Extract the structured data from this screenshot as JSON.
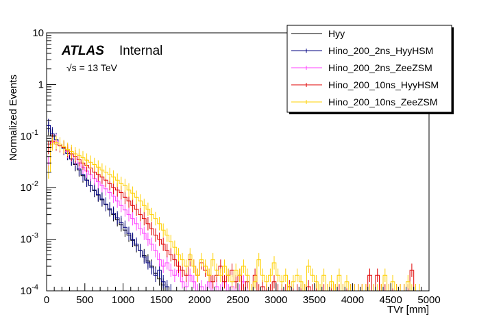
{
  "chart_data": {
    "type": "line",
    "style": "step-histogram",
    "title": "",
    "xlabel": "TVr [mm]",
    "ylabel": "Normalized Events",
    "xlim": [
      0,
      5000
    ],
    "ylim": [
      0.0001,
      10
    ],
    "yscale": "log",
    "bin_width": 50,
    "grid": false,
    "legend_position": "top-right",
    "x_ticks": [
      {
        "value": 0,
        "label": "0"
      },
      {
        "value": 500,
        "label": "500"
      },
      {
        "value": 1000,
        "label": "1000"
      },
      {
        "value": 1500,
        "label": "1500"
      },
      {
        "value": 2000,
        "label": "2000"
      },
      {
        "value": 2500,
        "label": "2500"
      },
      {
        "value": 3000,
        "label": "3000"
      },
      {
        "value": 3500,
        "label": "3500"
      },
      {
        "value": 4000,
        "label": "4000"
      },
      {
        "value": 4500,
        "label": "4500"
      },
      {
        "value": 5000,
        "label": "5000"
      }
    ],
    "y_ticks": [
      {
        "value": 10,
        "base": "10",
        "exp": ""
      },
      {
        "value": 1,
        "base": "1",
        "exp": ""
      },
      {
        "value": 0.1,
        "base": "10",
        "exp": "-1"
      },
      {
        "value": 0.01,
        "base": "10",
        "exp": "-2"
      },
      {
        "value": 0.001,
        "base": "10",
        "exp": "-3"
      },
      {
        "value": 0.0001,
        "base": "10",
        "exp": "-4"
      }
    ],
    "annotations": {
      "experiment": "ATLAS",
      "status": "Internal",
      "energy": "√s = 13 TeV"
    },
    "series": [
      {
        "name": "Hyy",
        "color": "#000000",
        "x": [
          0,
          50,
          100,
          150,
          200,
          250,
          300,
          350,
          400,
          450,
          500,
          550,
          600,
          650,
          700,
          750,
          800,
          850,
          900,
          950,
          1000,
          1050,
          1100,
          1150,
          1200,
          1250,
          1300,
          1350,
          1400,
          1450,
          1500,
          1550
        ],
        "values": [
          0.14,
          0.1,
          0.085,
          0.07,
          0.058,
          0.046,
          0.036,
          0.028,
          0.022,
          0.017,
          0.014,
          0.011,
          0.0088,
          0.0072,
          0.0058,
          0.0047,
          0.0037,
          0.003,
          0.0024,
          0.0019,
          0.0015,
          0.0012,
          0.00095,
          0.00075,
          0.0006,
          0.00048,
          0.00038,
          0.0003,
          0.00022,
          0.00017,
          0.00013,
          0.0001
        ]
      },
      {
        "name": "Hino_200_2ns_HyyHSM",
        "color": "#000080",
        "x": [
          0,
          50,
          100,
          150,
          200,
          250,
          300,
          350,
          400,
          450,
          500,
          550,
          600,
          650,
          700,
          750,
          800,
          850,
          900,
          950,
          1000,
          1050,
          1100,
          1150,
          1200,
          1250,
          1300,
          1350,
          1400,
          1450,
          1500,
          1550,
          1600
        ],
        "values": [
          0.16,
          0.11,
          0.085,
          0.07,
          0.058,
          0.046,
          0.036,
          0.029,
          0.023,
          0.018,
          0.014,
          0.011,
          0.009,
          0.0073,
          0.006,
          0.0048,
          0.0039,
          0.0032,
          0.0026,
          0.0021,
          0.0017,
          0.0013,
          0.001,
          0.0008,
          0.0006,
          0.00045,
          0.00035,
          0.00028,
          0.0002,
          0.00025,
          0.00015,
          0.00012,
          0.0001
        ]
      },
      {
        "name": "Hino_200_2ns_ZeeZSM",
        "color": "#ff40ff",
        "x": [
          0,
          50,
          100,
          150,
          200,
          250,
          300,
          350,
          400,
          450,
          500,
          550,
          600,
          650,
          700,
          750,
          800,
          850,
          900,
          950,
          1000,
          1050,
          1100,
          1150,
          1200,
          1250,
          1300,
          1350,
          1400,
          1450,
          1500,
          1550,
          1600,
          1650,
          1700,
          1750,
          1800,
          1850,
          1900,
          1950,
          2000,
          2050,
          2100,
          2150,
          2200,
          2250,
          2300,
          2350,
          2400,
          2450,
          2500,
          2550,
          2600,
          2650
        ],
        "values": [
          0.03,
          0.075,
          0.08,
          0.07,
          0.06,
          0.05,
          0.043,
          0.036,
          0.03,
          0.025,
          0.021,
          0.018,
          0.015,
          0.013,
          0.011,
          0.0095,
          0.008,
          0.0068,
          0.0055,
          0.0045,
          0.0037,
          0.003,
          0.0025,
          0.002,
          0.0016,
          0.0013,
          0.001,
          0.0008,
          0.0006,
          0.0004,
          0.0003,
          0.00035,
          0.00025,
          0.0002,
          0.00025,
          0.00015,
          0.00012,
          0.0002,
          0.00015,
          0.0001,
          0.00012,
          0.0001,
          0.00015,
          0.0001,
          0.00012,
          0.0001,
          0.00015,
          0.0001,
          0.00012,
          0.0001,
          0.0001,
          0.00015,
          0.0001,
          0.0001
        ]
      },
      {
        "name": "Hino_200_10ns_HyyHSM",
        "color": "#e00000",
        "x": [
          0,
          50,
          100,
          150,
          200,
          250,
          300,
          350,
          400,
          450,
          500,
          550,
          600,
          650,
          700,
          750,
          800,
          850,
          900,
          950,
          1000,
          1050,
          1100,
          1150,
          1200,
          1250,
          1300,
          1350,
          1400,
          1450,
          1500,
          1550,
          1600,
          1650,
          1700,
          1750,
          1800,
          1850,
          1900,
          1950,
          2000,
          2050,
          2100,
          2150,
          2200,
          2250,
          2300,
          2350,
          2400,
          2450,
          2500,
          2550,
          2600,
          2650,
          2700,
          2750,
          2800,
          2850,
          2900,
          2950,
          3000,
          3050,
          3100,
          3150,
          3200,
          3250,
          3300,
          3350,
          3400,
          3450,
          3500,
          3550,
          3600,
          3650,
          3700,
          3750,
          3800,
          3850,
          3900,
          3950,
          4000,
          4050,
          4100,
          4150,
          4200,
          4250,
          4300,
          4350,
          4400,
          4450,
          4500,
          4550,
          4600,
          4650,
          4700,
          4750,
          4800,
          4850
        ],
        "values": [
          0.06,
          0.08,
          0.07,
          0.065,
          0.06,
          0.052,
          0.045,
          0.04,
          0.035,
          0.03,
          0.027,
          0.024,
          0.02,
          0.018,
          0.016,
          0.014,
          0.012,
          0.01,
          0.009,
          0.008,
          0.0065,
          0.0055,
          0.0045,
          0.0038,
          0.003,
          0.0025,
          0.002,
          0.0016,
          0.0012,
          0.001,
          0.0008,
          0.0006,
          0.0005,
          0.0004,
          0.0003,
          0.00025,
          0.0002,
          0.0004,
          0.0003,
          0.0002,
          0.00035,
          0.00025,
          0.0002,
          0.00015,
          0.0002,
          0.0003,
          0.00015,
          0.0002,
          0.00025,
          0.00015,
          0.0002,
          0.0001,
          0.00015,
          0.0001,
          0.0002,
          0.0001,
          0.00012,
          0.0001,
          0.0001,
          0.00015,
          0.0001,
          0.0001,
          0.0001,
          0.00012,
          0.0001,
          0.0001,
          0.0001,
          0.0001,
          0.00012,
          0.0001,
          0.0001,
          0.0001,
          0.0001,
          0.0001,
          0.0001,
          0.0001,
          0.0001,
          0.0001,
          0.0001,
          0.0001,
          0.0001,
          0.0001,
          0.0001,
          0.0001,
          0.0002,
          0.0001,
          0.0002,
          0.0001,
          0.0001,
          0.0001,
          0.0001,
          0.0001,
          0.0001,
          0.0001,
          0.0001,
          0.00025,
          0.0001,
          0.0001
        ]
      },
      {
        "name": "Hino_200_10ns_ZeeZSM",
        "color": "#ffd000",
        "x": [
          0,
          50,
          100,
          150,
          200,
          250,
          300,
          350,
          400,
          450,
          500,
          550,
          600,
          650,
          700,
          750,
          800,
          850,
          900,
          950,
          1000,
          1050,
          1100,
          1150,
          1200,
          1250,
          1300,
          1350,
          1400,
          1450,
          1500,
          1550,
          1600,
          1650,
          1700,
          1750,
          1800,
          1850,
          1900,
          1950,
          2000,
          2050,
          2100,
          2150,
          2200,
          2250,
          2300,
          2350,
          2400,
          2450,
          2500,
          2550,
          2600,
          2650,
          2700,
          2750,
          2800,
          2850,
          2900,
          2950,
          3000,
          3050,
          3100,
          3150,
          3200,
          3250,
          3300,
          3350,
          3400,
          3450,
          3500,
          3550,
          3600,
          3650,
          3700,
          3750,
          3800,
          3850,
          3900,
          3950,
          4000,
          4050,
          4100,
          4150,
          4200,
          4250,
          4300,
          4350,
          4400,
          4450,
          4500,
          4550,
          4600,
          4650,
          4700,
          4750,
          4800,
          4850
        ],
        "values": [
          0.02,
          0.07,
          0.075,
          0.07,
          0.062,
          0.055,
          0.05,
          0.045,
          0.042,
          0.038,
          0.034,
          0.031,
          0.028,
          0.025,
          0.022,
          0.02,
          0.018,
          0.016,
          0.014,
          0.012,
          0.011,
          0.009,
          0.0078,
          0.0065,
          0.0055,
          0.0045,
          0.0038,
          0.003,
          0.0025,
          0.002,
          0.0015,
          0.0012,
          0.0009,
          0.0007,
          0.0005,
          0.0004,
          0.0003,
          0.0005,
          0.0003,
          0.0002,
          0.0004,
          0.0003,
          0.0002,
          0.0004,
          0.00025,
          0.0002,
          0.0003,
          0.0002,
          0.00015,
          0.00025,
          0.0002,
          0.0003,
          0.0002,
          0.0001,
          0.00015,
          0.0004,
          0.0002,
          0.00015,
          0.0002,
          0.00035,
          0.0002,
          0.00015,
          0.0002,
          0.0001,
          0.00015,
          0.0002,
          0.00015,
          0.0001,
          0.0003,
          0.0002,
          0.00015,
          0.0001,
          0.0002,
          0.0001,
          0.00015,
          0.0001,
          0.0002,
          0.0001,
          0.00015,
          0.0001,
          0.0001,
          0.0001,
          0.0001,
          0.0001,
          0.0001,
          0.0001,
          0.0001,
          0.0001,
          0.0002,
          0.0001,
          0.00015,
          0.0001,
          0.0001,
          0.0001,
          0.00015,
          0.0001,
          0.0001,
          0.0001
        ]
      }
    ]
  }
}
